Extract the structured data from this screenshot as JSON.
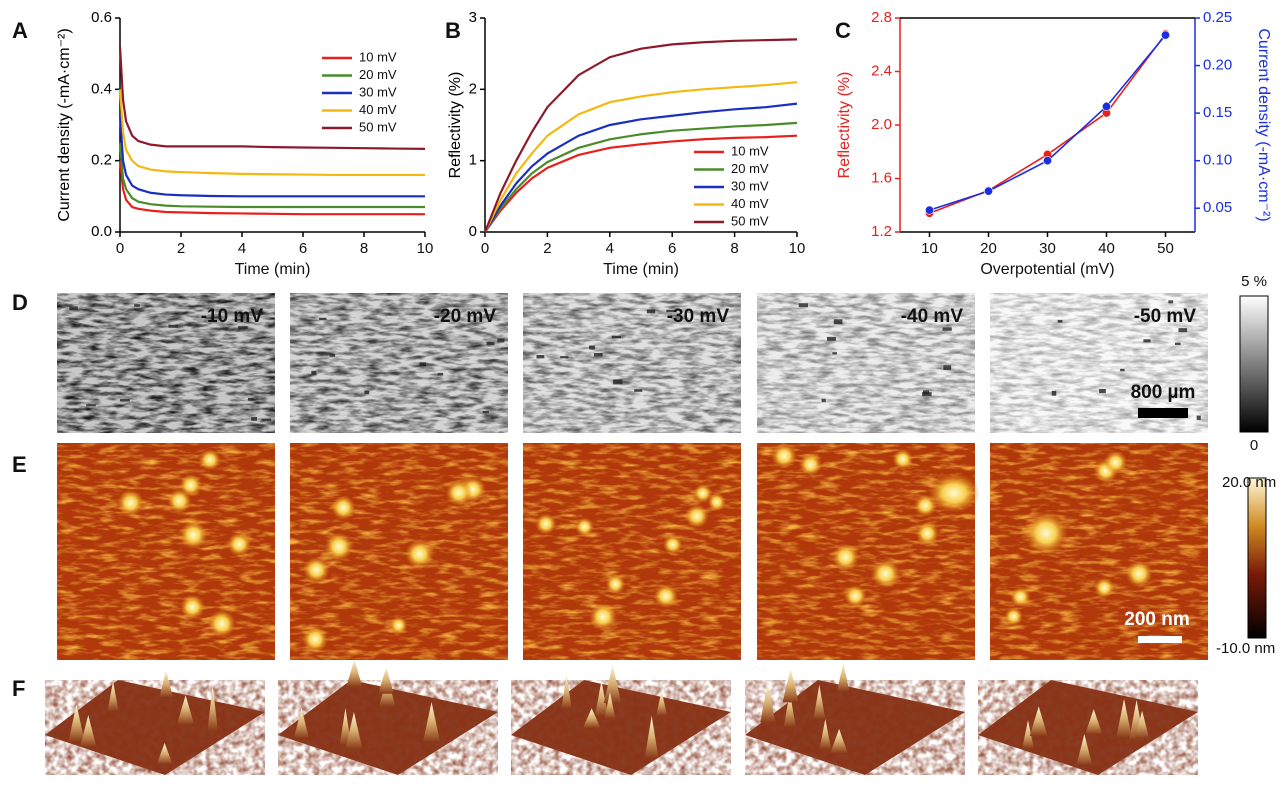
{
  "chart_data": [
    {
      "type": "line",
      "panel_label": "A",
      "xlabel": "Time (min)",
      "ylabel": "Current density (-mA·cm⁻²)",
      "x": [
        0,
        0.1,
        0.2,
        0.4,
        0.6,
        1,
        1.5,
        2,
        3,
        4,
        5,
        6,
        7,
        8,
        9,
        10
      ],
      "xlim": [
        0,
        10
      ],
      "xticks": [
        0,
        2,
        4,
        6,
        8,
        10
      ],
      "ylim": [
        0,
        0.6
      ],
      "yticks": [
        {
          "value": 0,
          "label": "0.0"
        },
        0.2,
        0.4,
        0.6
      ],
      "legend": "upper right",
      "series": [
        {
          "name": "10 mV",
          "color": "#e8201c",
          "values": [
            0.2,
            0.12,
            0.09,
            0.07,
            0.065,
            0.06,
            0.056,
            0.055,
            0.053,
            0.052,
            0.051,
            0.05,
            0.05,
            0.05,
            0.05,
            0.05
          ]
        },
        {
          "name": "20 mV",
          "color": "#4a8c2a",
          "values": [
            0.25,
            0.15,
            0.12,
            0.095,
            0.085,
            0.078,
            0.074,
            0.072,
            0.071,
            0.07,
            0.07,
            0.07,
            0.07,
            0.07,
            0.07,
            0.07
          ]
        },
        {
          "name": "30 mV",
          "color": "#1a2fc0",
          "values": [
            0.33,
            0.2,
            0.16,
            0.13,
            0.12,
            0.11,
            0.105,
            0.103,
            0.101,
            0.1,
            0.1,
            0.1,
            0.1,
            0.1,
            0.1,
            0.1
          ]
        },
        {
          "name": "40 mV",
          "color": "#f5b80f",
          "values": [
            0.4,
            0.28,
            0.23,
            0.2,
            0.185,
            0.175,
            0.17,
            0.168,
            0.165,
            0.163,
            0.162,
            0.161,
            0.16,
            0.16,
            0.16,
            0.16
          ]
        },
        {
          "name": "50 mV",
          "color": "#8c1a2a",
          "values": [
            0.52,
            0.37,
            0.31,
            0.27,
            0.255,
            0.245,
            0.24,
            0.24,
            0.24,
            0.24,
            0.238,
            0.237,
            0.236,
            0.235,
            0.234,
            0.233
          ]
        }
      ]
    },
    {
      "type": "line",
      "panel_label": "B",
      "xlabel": "Time (min)",
      "ylabel": "Reflectivity (%)",
      "x": [
        0,
        0.5,
        1,
        1.5,
        2,
        3,
        4,
        5,
        6,
        7,
        8,
        9,
        10
      ],
      "xlim": [
        0,
        10
      ],
      "xticks": [
        0,
        2,
        4,
        6,
        8,
        10
      ],
      "ylim": [
        0,
        3
      ],
      "yticks": [
        0,
        1,
        2,
        3
      ],
      "legend": "lower right",
      "series": [
        {
          "name": "10 mV",
          "color": "#e8201c",
          "values": [
            0,
            0.3,
            0.55,
            0.75,
            0.9,
            1.08,
            1.18,
            1.23,
            1.27,
            1.3,
            1.32,
            1.33,
            1.35
          ]
        },
        {
          "name": "20 mV",
          "color": "#4a8c2a",
          "values": [
            0,
            0.33,
            0.6,
            0.82,
            0.98,
            1.18,
            1.3,
            1.37,
            1.42,
            1.45,
            1.48,
            1.5,
            1.53
          ]
        },
        {
          "name": "30 mV",
          "color": "#1a2fc0",
          "values": [
            0,
            0.37,
            0.68,
            0.92,
            1.1,
            1.35,
            1.5,
            1.58,
            1.63,
            1.68,
            1.72,
            1.75,
            1.8
          ]
        },
        {
          "name": "40 mV",
          "color": "#f5b80f",
          "values": [
            0,
            0.45,
            0.82,
            1.1,
            1.35,
            1.65,
            1.82,
            1.9,
            1.96,
            2.0,
            2.03,
            2.06,
            2.1
          ]
        },
        {
          "name": "50 mV",
          "color": "#8c1a2a",
          "values": [
            0,
            0.55,
            1.0,
            1.4,
            1.75,
            2.2,
            2.45,
            2.57,
            2.63,
            2.66,
            2.68,
            2.69,
            2.7
          ]
        }
      ]
    },
    {
      "type": "line",
      "panel_label": "C",
      "xlabel": "Overpotential (mV)",
      "ylabel": "Reflectivity (%)",
      "y2label": "Current density (-mA·cm⁻²)",
      "x": [
        10,
        20,
        30,
        40,
        50
      ],
      "xlim": [
        5,
        55
      ],
      "xticks": [
        10,
        20,
        30,
        40,
        50
      ],
      "ylim": [
        1.2,
        2.8
      ],
      "yticks": [
        1.2,
        1.6,
        {
          "value": 2,
          "label": "2.0"
        },
        2.4,
        2.8
      ],
      "y2lim": [
        0.025,
        0.25
      ],
      "y2ticks": [
        0.05,
        {
          "value": 0.1,
          "label": "0.10"
        },
        0.15,
        {
          "value": 0.2,
          "label": "0.20"
        },
        0.25
      ],
      "markers": true,
      "series": [
        {
          "color": "#e8201c",
          "values": [
            1.34,
            1.51,
            1.78,
            2.09,
            2.68
          ]
        },
        {
          "color": "#1a2fe0",
          "axis": "y2",
          "values": [
            0.048,
            0.068,
            0.1,
            0.157,
            0.232
          ]
        }
      ]
    }
  ],
  "panels": {
    "D": {
      "label": "D",
      "images": [
        "-10 mV",
        "-20 mV",
        "-30 mV",
        "-40 mV",
        "-50 mV"
      ],
      "scale_bar": "800 µm",
      "colorbar": {
        "top": "5 %",
        "bottom": "0"
      }
    },
    "E": {
      "label": "E",
      "scale_bar": "200 nm",
      "colorbar": {
        "top": "20.0 nm",
        "bottom": "-10.0 nm"
      }
    },
    "F": {
      "label": "F"
    }
  }
}
